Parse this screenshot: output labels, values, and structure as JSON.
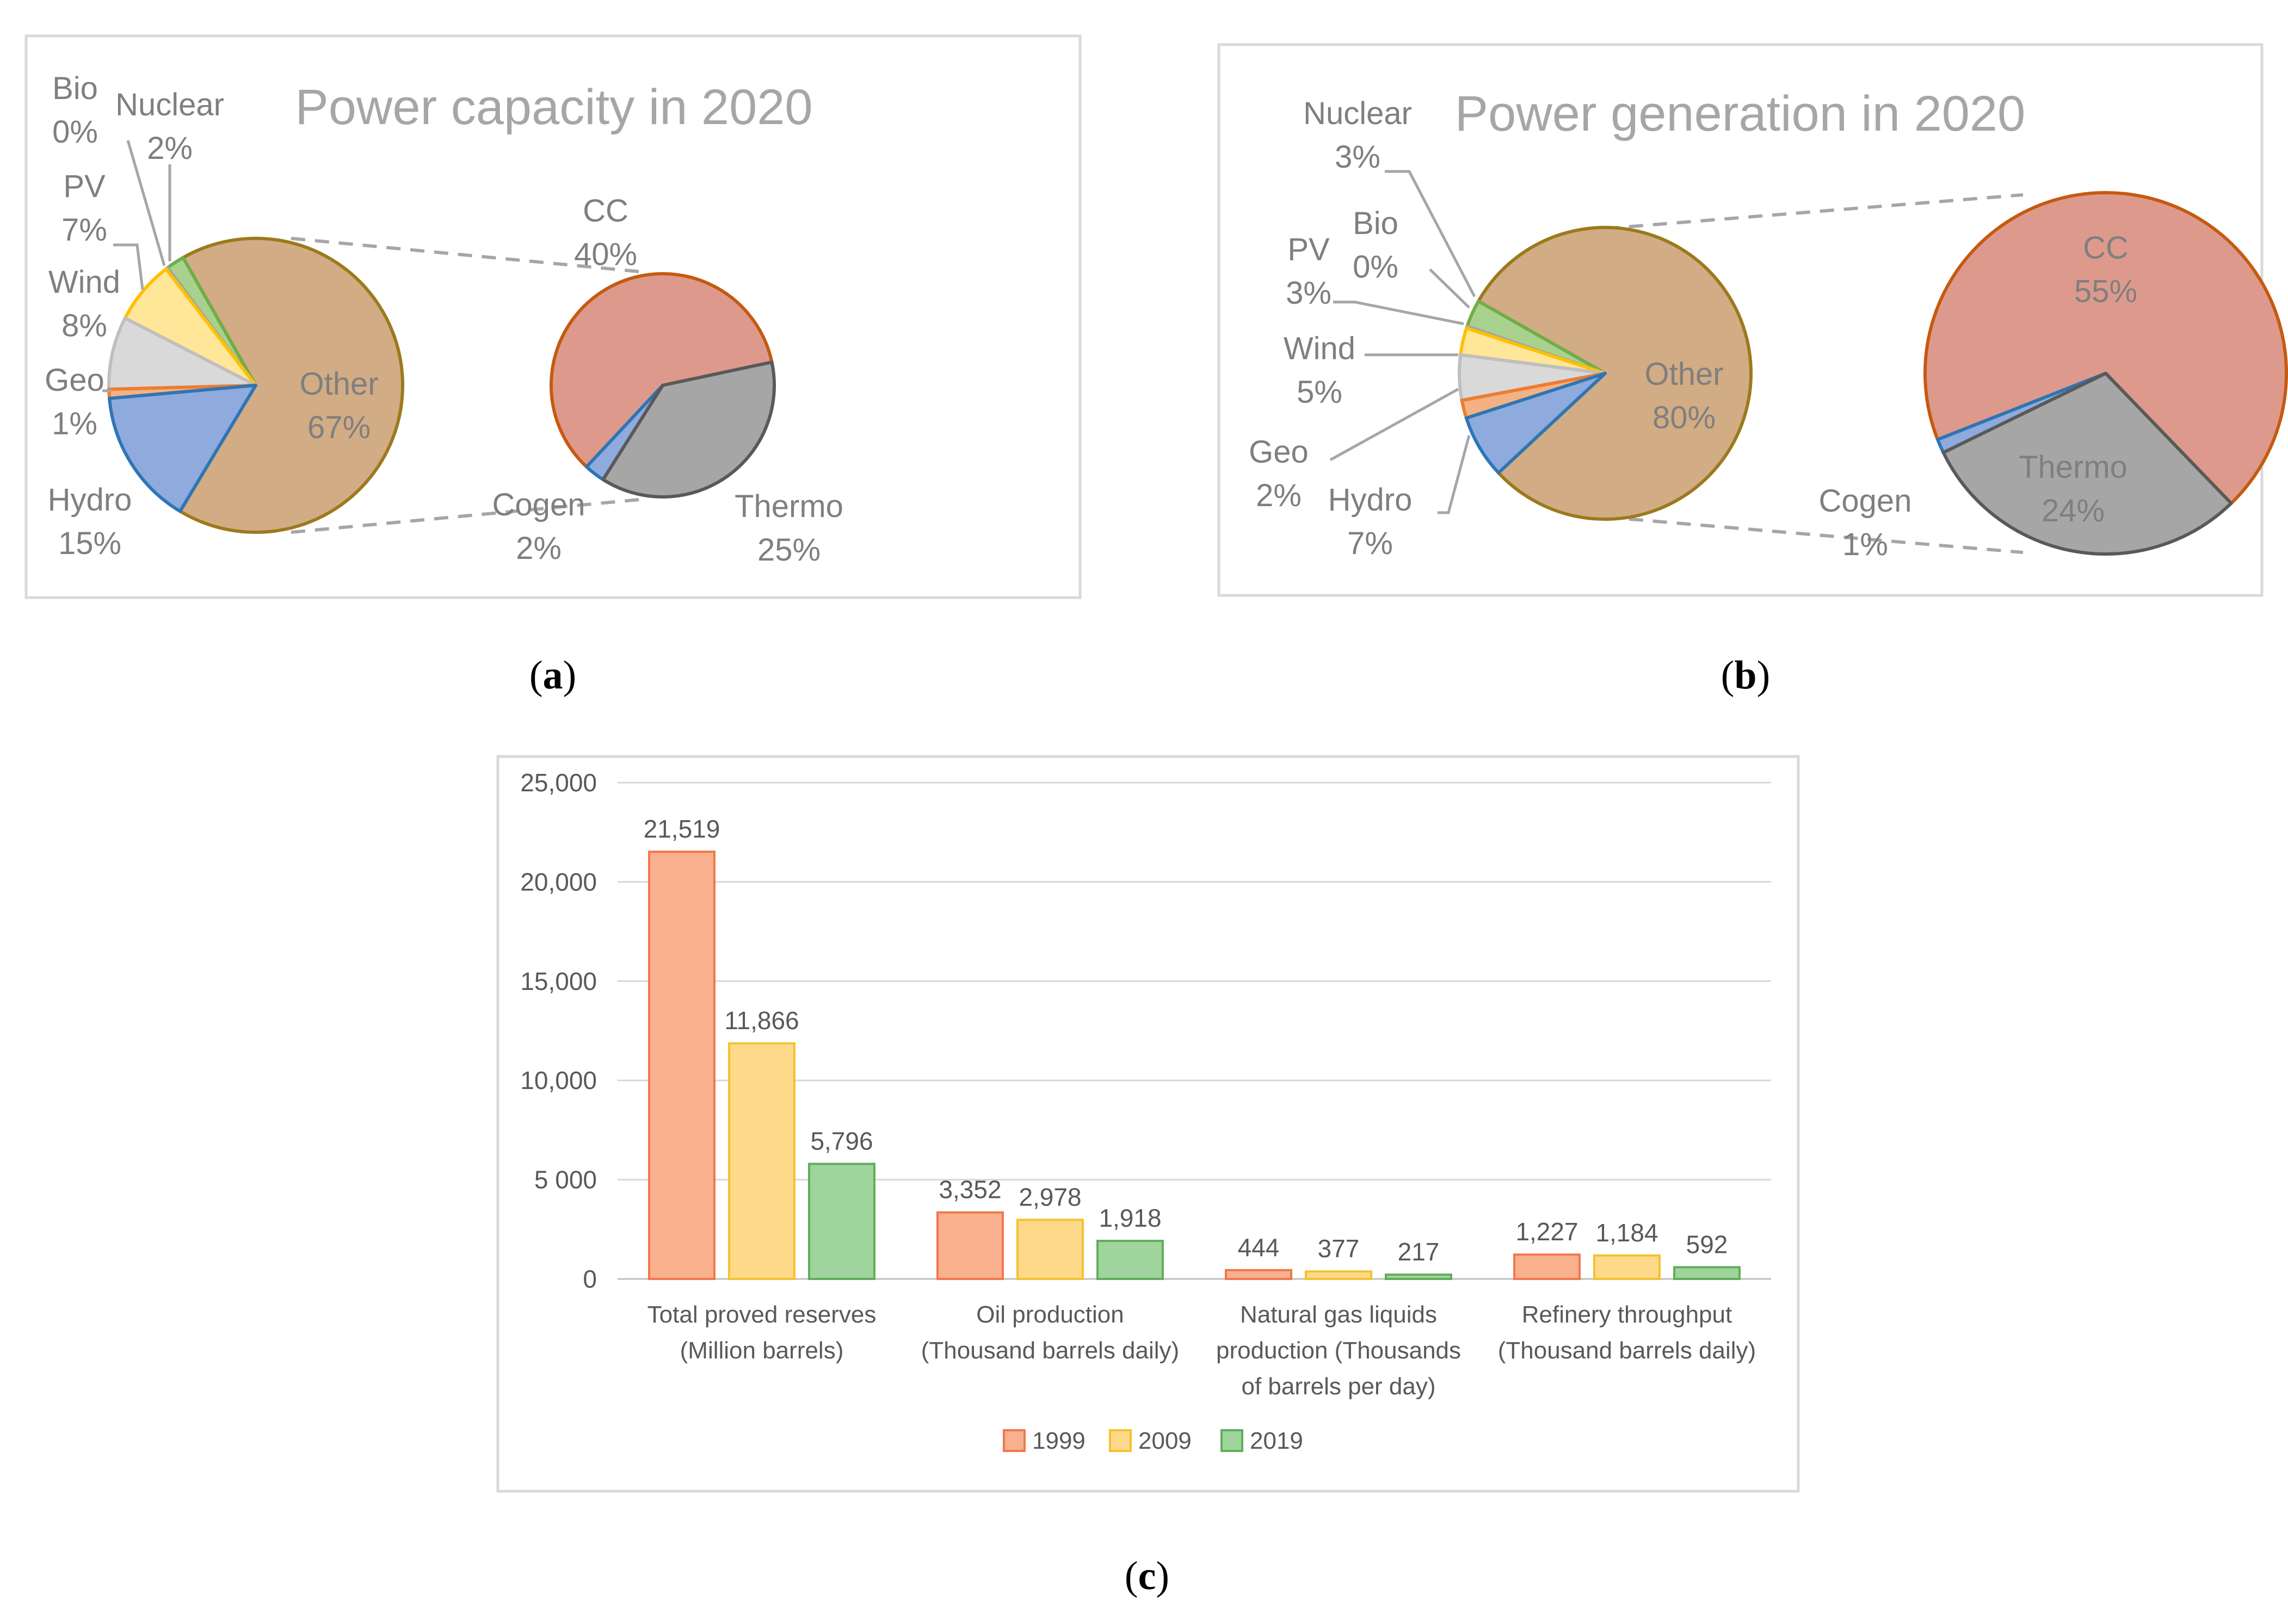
{
  "chart_data": [
    {
      "type": "pie",
      "variant": "bar-of-pie",
      "title": "Power capacity in 2020",
      "caption": "a",
      "slices": [
        {
          "label": "Hydro",
          "value": 15,
          "display": "15%"
        },
        {
          "label": "Geo",
          "value": 1,
          "display": "1%"
        },
        {
          "label": "Wind",
          "value": 8,
          "display": "8%"
        },
        {
          "label": "PV",
          "value": 7,
          "display": "7%"
        },
        {
          "label": "Bio",
          "value": 0,
          "display": "0%"
        },
        {
          "label": "Nuclear",
          "value": 2,
          "display": "2%"
        },
        {
          "label": "Other",
          "value": 67,
          "display": "67%"
        }
      ],
      "breakdown": [
        {
          "label": "CC",
          "value": 40,
          "display": "40%"
        },
        {
          "label": "Thermo",
          "value": 25,
          "display": "25%"
        },
        {
          "label": "Cogen",
          "value": 2,
          "display": "2%"
        }
      ]
    },
    {
      "type": "pie",
      "variant": "pie-of-pie",
      "title": "Power generation in 2020",
      "caption": "b",
      "slices": [
        {
          "label": "Hydro",
          "value": 7,
          "display": "7%"
        },
        {
          "label": "Geo",
          "value": 2,
          "display": "2%"
        },
        {
          "label": "Wind",
          "value": 5,
          "display": "5%"
        },
        {
          "label": "PV",
          "value": 3,
          "display": "3%"
        },
        {
          "label": "Bio",
          "value": 0,
          "display": "0%"
        },
        {
          "label": "Nuclear",
          "value": 3,
          "display": "3%"
        },
        {
          "label": "Other",
          "value": 80,
          "display": "80%"
        }
      ],
      "breakdown": [
        {
          "label": "CC",
          "value": 55,
          "display": "55%"
        },
        {
          "label": "Thermo",
          "value": 24,
          "display": "24%"
        },
        {
          "label": "Cogen",
          "value": 1,
          "display": "1%"
        }
      ]
    },
    {
      "type": "bar",
      "caption": "c",
      "categories": [
        [
          "Total proved reserves",
          "(Million barrels)"
        ],
        [
          "Oil production",
          "(Thousand barrels daily)"
        ],
        [
          "Natural gas liquids",
          "production (Thousands",
          "of barrels per day)"
        ],
        [
          "Refinery throughput",
          "(Thousand barrels daily)"
        ]
      ],
      "series": [
        {
          "name": "1999",
          "values": [
            21519,
            3352,
            444,
            1227
          ]
        },
        {
          "name": "2009",
          "values": [
            11866,
            2978,
            377,
            1184
          ]
        },
        {
          "name": "2019",
          "values": [
            5796,
            1918,
            217,
            592
          ]
        }
      ],
      "data_labels": [
        [
          "21,519",
          "3,352",
          "444",
          "1,227"
        ],
        [
          "11,866",
          "2,978",
          "377",
          "1,184"
        ],
        [
          "5,796",
          "1,918",
          "217",
          "592"
        ]
      ],
      "ylim": [
        0,
        25000
      ],
      "yticks": [
        0,
        5000,
        10000,
        15000,
        20000,
        25000
      ],
      "ytick_labels": [
        "0",
        "5 000",
        "10,000",
        "15,000",
        "20,000",
        "25,000"
      ],
      "grid": true,
      "legend": "bottom",
      "xlabel": "",
      "ylabel": ""
    }
  ],
  "colors": {
    "Hydro": "#8faadc",
    "Hydro_edge": "#2e75b6",
    "Geo": "#f4b183",
    "Geo_edge": "#ed7d31",
    "Wind": "#d9d9d9",
    "Wind_edge": "#bfbfbf",
    "PV": "#ffe699",
    "PV_edge": "#ffc000",
    "Bio": "#d9d9d9",
    "Bio_edge": "#a6a6a6",
    "Nuclear": "#a9d18e",
    "Nuclear_edge": "#70ad47",
    "Other": "#d2ac84",
    "Other_edge": "#9c7a1c",
    "CC": "#dd9a8c",
    "CC_edge": "#c55a11",
    "Thermo": "#a6a6a6",
    "Thermo_edge": "#595959",
    "Cogen": "#8faadc",
    "Cogen_edge": "#2e75b6",
    "bar_1999": "#f8b08f",
    "bar_1999_edge": "#f0784c",
    "bar_2009": "#ffd98a",
    "bar_2009_edge": "#f2c230",
    "bar_2019": "#9fd49c",
    "bar_2019_edge": "#62ad5d"
  }
}
